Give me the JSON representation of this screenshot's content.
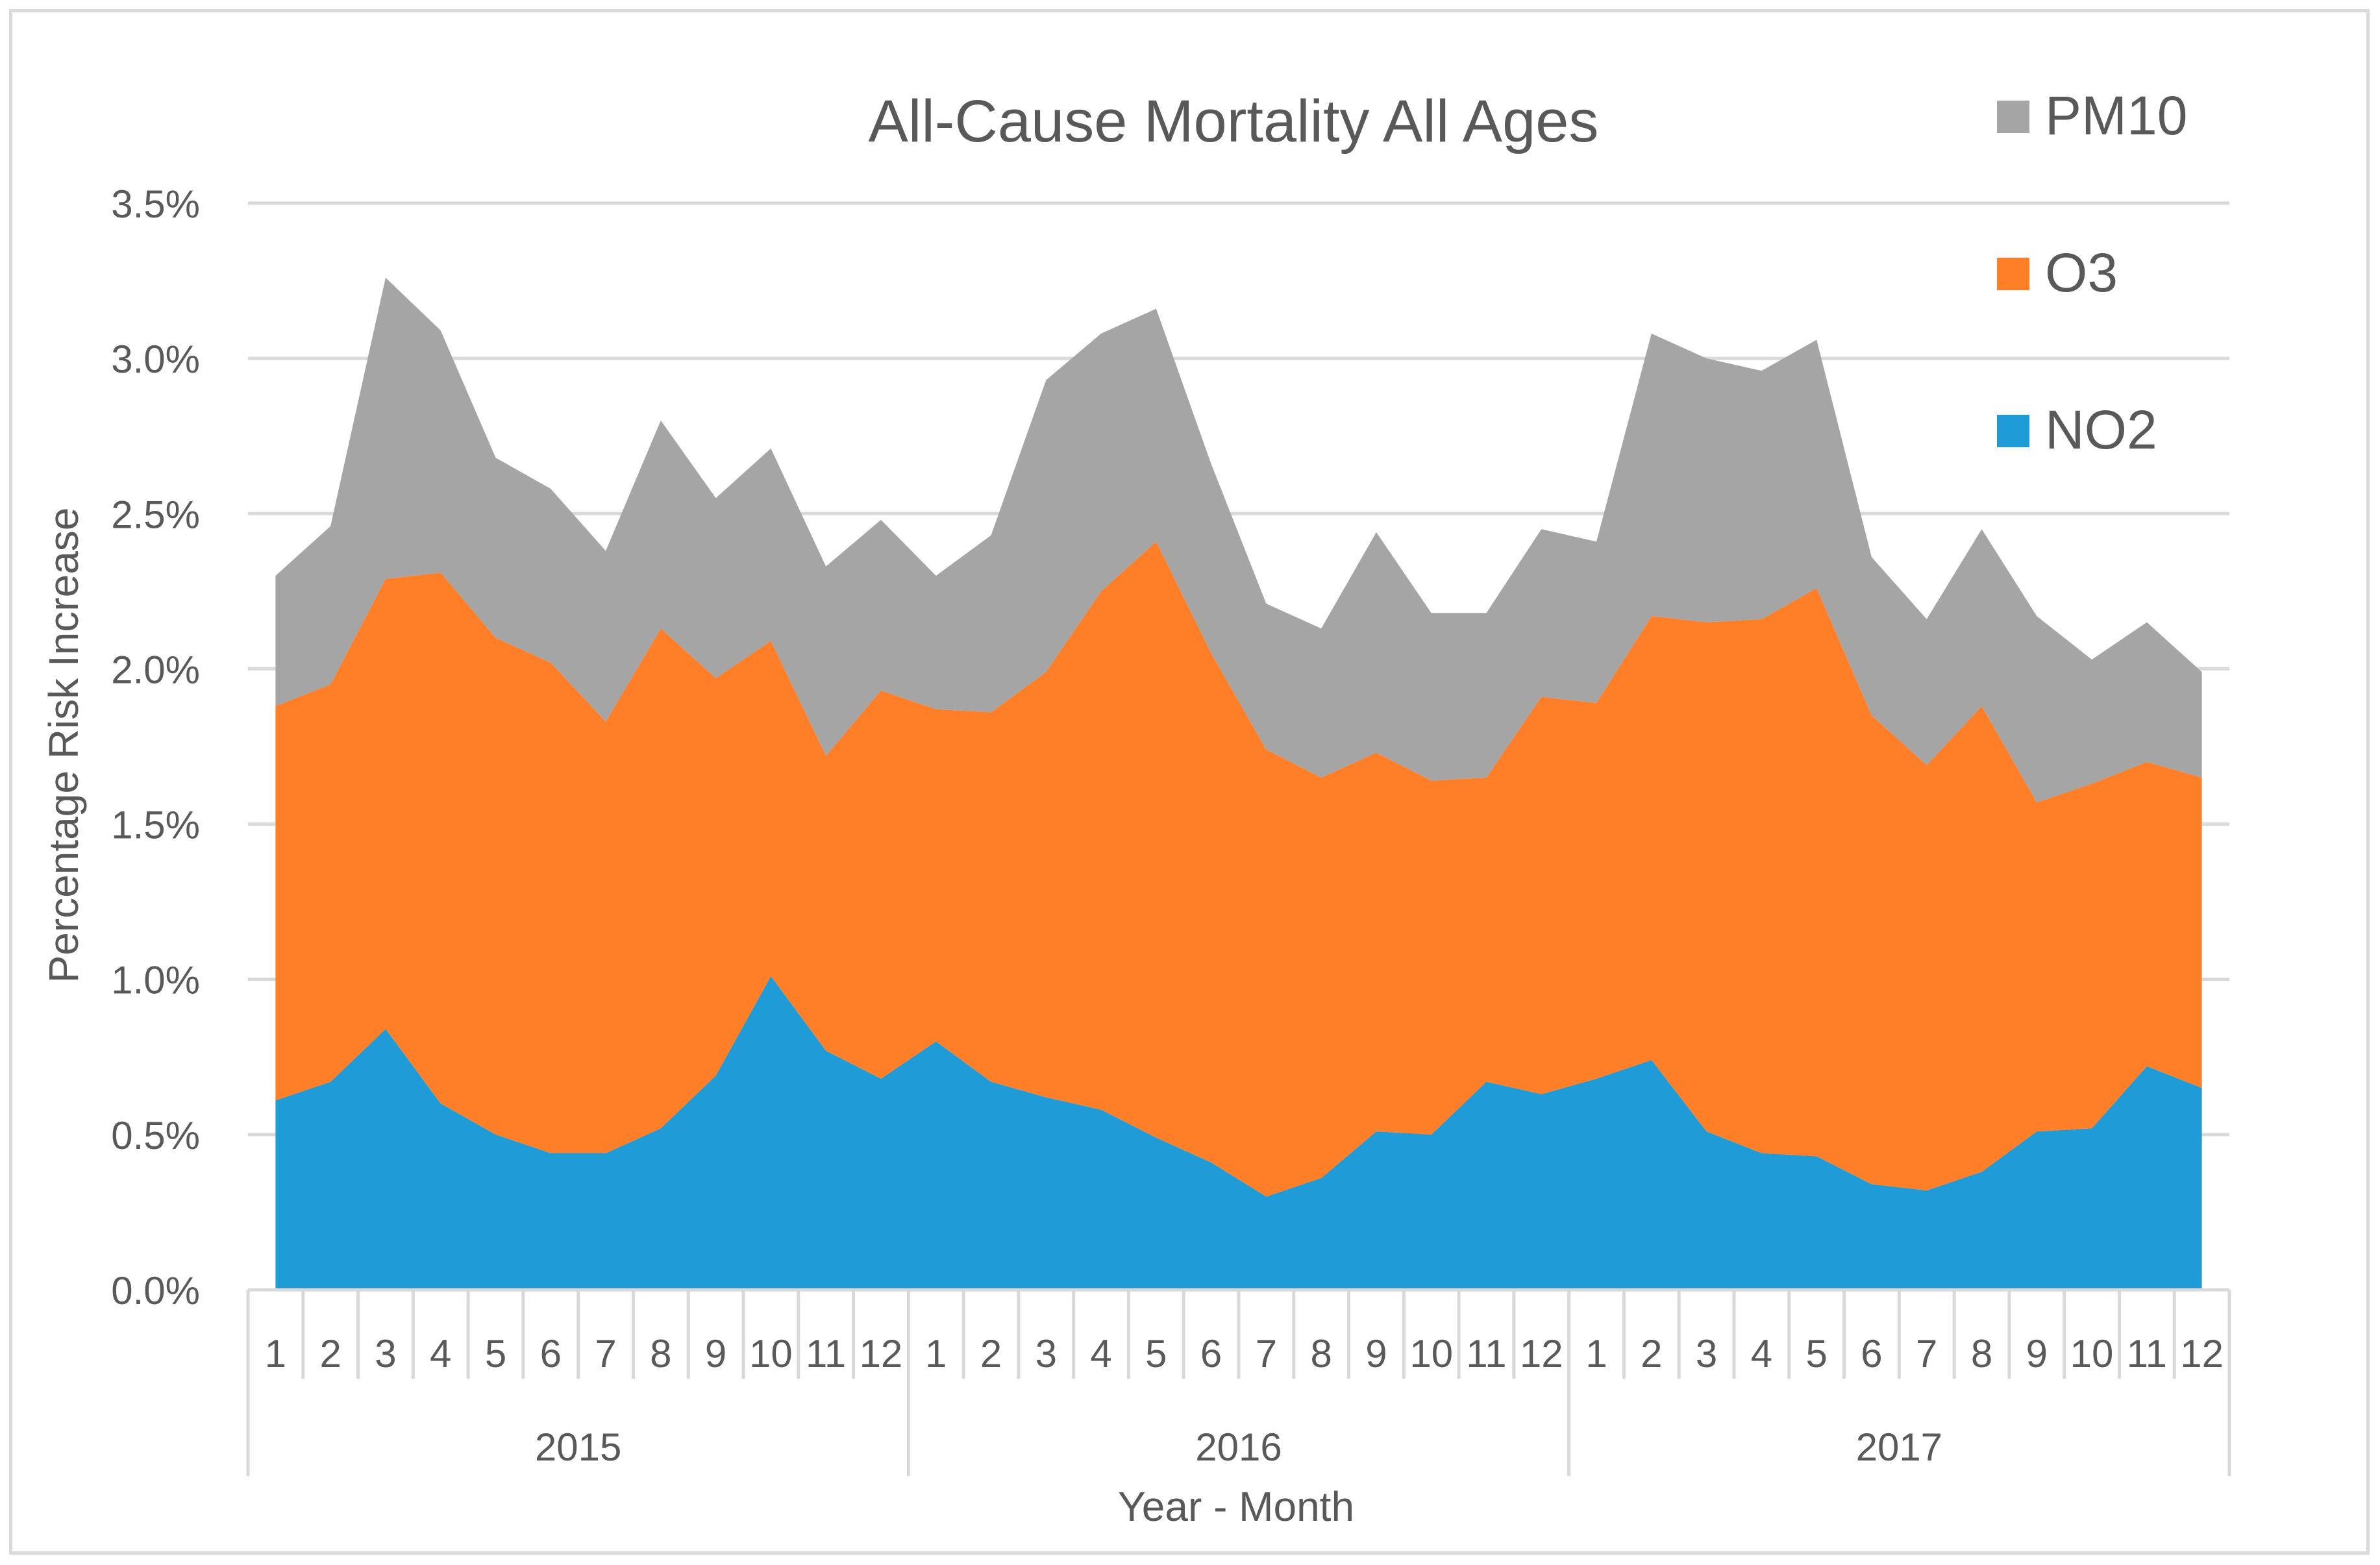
{
  "chart_data": {
    "type": "area",
    "stacked": true,
    "title": "All-Cause Mortality All Ages",
    "xlabel": "Year - Month",
    "ylabel": "Percentage Risk Increase",
    "ylim": [
      0,
      3.5
    ],
    "y_ticks": [
      "0.0%",
      "0.5%",
      "1.0%",
      "1.5%",
      "2.0%",
      "2.5%",
      "3.0%",
      "3.5%"
    ],
    "grid": true,
    "legend_position": "top-right",
    "categories": [
      "1",
      "2",
      "3",
      "4",
      "5",
      "6",
      "7",
      "8",
      "9",
      "10",
      "11",
      "12",
      "1",
      "2",
      "3",
      "4",
      "5",
      "6",
      "7",
      "8",
      "9",
      "10",
      "11",
      "12",
      "1",
      "2",
      "3",
      "4",
      "5",
      "6",
      "7",
      "8",
      "9",
      "10",
      "11",
      "12"
    ],
    "years": [
      "2015",
      "2016",
      "2017"
    ],
    "series": [
      {
        "name": "NO2",
        "color": "#1f9bd7",
        "values": [
          0.61,
          0.67,
          0.84,
          0.6,
          0.5,
          0.44,
          0.44,
          0.52,
          0.69,
          1.01,
          0.77,
          0.68,
          0.8,
          0.67,
          0.62,
          0.58,
          0.49,
          0.41,
          0.3,
          0.36,
          0.51,
          0.5,
          0.67,
          0.63,
          0.68,
          0.74,
          0.51,
          0.44,
          0.43,
          0.34,
          0.32,
          0.38,
          0.51,
          0.52,
          0.72,
          0.65
        ]
      },
      {
        "name": "O3",
        "color": "#fe7f28",
        "values": [
          1.27,
          1.28,
          1.45,
          1.71,
          1.6,
          1.58,
          1.39,
          1.61,
          1.28,
          1.08,
          0.95,
          1.25,
          1.07,
          1.19,
          1.37,
          1.67,
          1.92,
          1.64,
          1.44,
          1.29,
          1.22,
          1.14,
          0.98,
          1.28,
          1.21,
          1.43,
          1.64,
          1.72,
          1.83,
          1.51,
          1.37,
          1.5,
          1.06,
          1.11,
          0.98,
          1.0
        ]
      },
      {
        "name": "PM10",
        "color": "#a5a5a5",
        "values": [
          0.42,
          0.51,
          0.97,
          0.78,
          0.58,
          0.56,
          0.55,
          0.67,
          0.58,
          0.62,
          0.61,
          0.55,
          0.43,
          0.57,
          0.94,
          0.83,
          0.75,
          0.61,
          0.47,
          0.48,
          0.71,
          0.54,
          0.53,
          0.54,
          0.52,
          0.91,
          0.85,
          0.8,
          0.8,
          0.51,
          0.47,
          0.57,
          0.6,
          0.4,
          0.45,
          0.34
        ]
      }
    ]
  }
}
